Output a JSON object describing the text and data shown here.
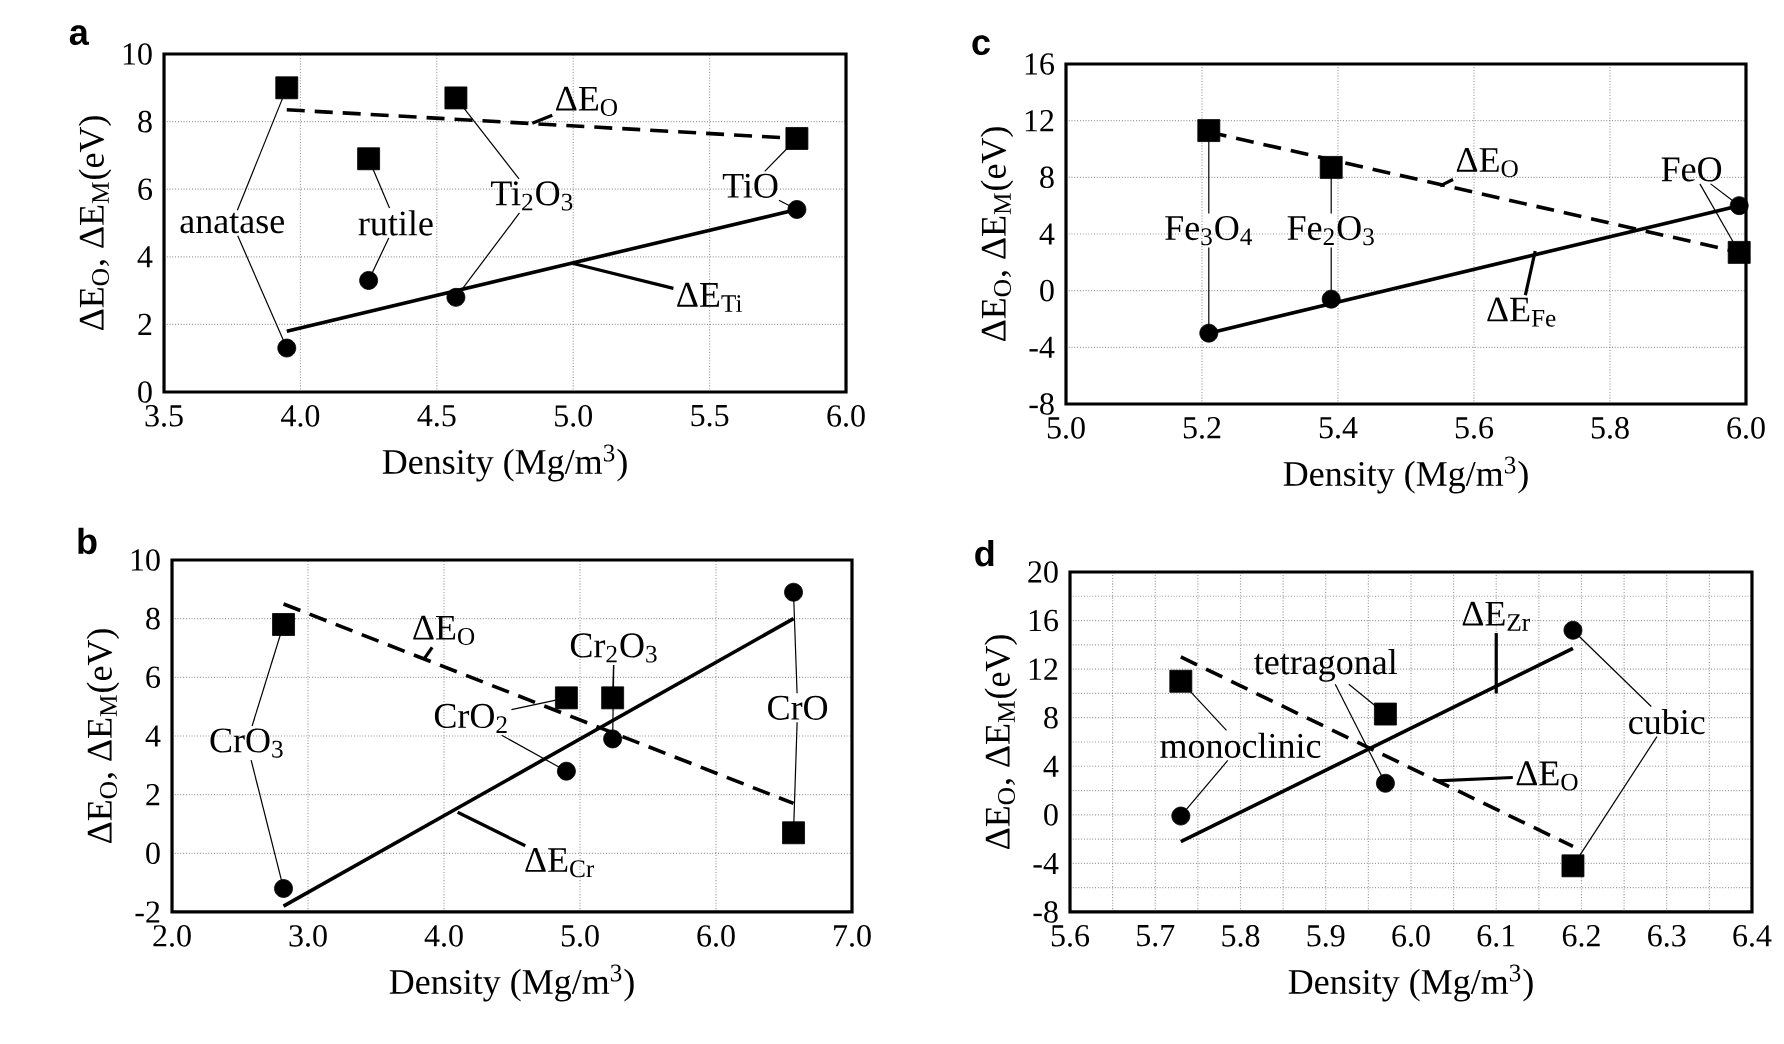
{
  "chart_data": [
    {
      "type": "scatter",
      "title": "a",
      "xlabel": "Density (Mg/m$^{3}$)",
      "ylabel": "ΔE$_{O}$, ΔE$_{M}$(eV)",
      "grid": true,
      "xlim": [
        3.5,
        6.0
      ],
      "ylim": [
        0,
        10
      ],
      "xticks": [
        3.5,
        {
          "value": 4.0,
          "label": "4.0"
        },
        4.5,
        {
          "value": 5.0,
          "label": "5.0"
        },
        5.5,
        {
          "value": 6.0,
          "label": "6.0"
        }
      ],
      "yticks": [
        0,
        2,
        4,
        6,
        8,
        10
      ],
      "series": [
        {
          "type": "scatter",
          "marker": "square",
          "color": "#000000",
          "x": [
            3.95,
            4.25,
            4.57,
            5.82
          ],
          "values": [
            9.0,
            6.9,
            8.7,
            7.5
          ]
        },
        {
          "type": "scatter",
          "marker": "circle",
          "color": "#000000",
          "x": [
            3.95,
            4.25,
            4.57,
            5.82
          ],
          "values": [
            1.3,
            3.3,
            2.8,
            5.4
          ]
        },
        {
          "type": "line",
          "line_style": "dashed",
          "marker": "none",
          "color": "#000000",
          "x": [
            3.95,
            5.82
          ],
          "values": [
            8.35,
            7.5
          ]
        },
        {
          "type": "line",
          "line_style": "solid",
          "marker": "none",
          "color": "#000000",
          "x": [
            3.95,
            5.82
          ],
          "values": [
            1.8,
            5.4
          ]
        }
      ],
      "annotations": [
        {
          "text": "anatase",
          "x": 3.95,
          "y": 1.3
        },
        {
          "text": "rutile",
          "x": 4.25,
          "y": 3.3
        },
        {
          "text": "Ti$_{2}$O$_{3}$",
          "x": 4.57,
          "y": 2.8
        },
        {
          "text": "TiO",
          "x": 5.82,
          "y": 5.4
        },
        {
          "text": "ΔE$_{O}$",
          "x": 4.85,
          "y": 7.95
        },
        {
          "text": "ΔE$_{Ti}$",
          "x": 5.0,
          "y": 3.8
        }
      ]
    },
    {
      "type": "scatter",
      "title": "c",
      "xlabel": "Density (Mg/m$^{3}$)",
      "ylabel": "ΔE$_{O}$, ΔE$_{M}$(eV)",
      "grid": true,
      "xlim": [
        5.0,
        6.0
      ],
      "ylim": [
        -8,
        16
      ],
      "xticks": [
        {
          "value": 5.0,
          "label": "5.0"
        },
        5.2,
        5.4,
        5.6,
        5.8,
        {
          "value": 6.0,
          "label": "6.0"
        }
      ],
      "yticks": [
        -8,
        -4,
        0,
        4,
        8,
        12,
        16
      ],
      "series": [
        {
          "type": "scatter",
          "marker": "square",
          "color": "#000000",
          "x": [
            5.21,
            5.39,
            5.99
          ],
          "values": [
            11.3,
            8.7,
            2.7
          ]
        },
        {
          "type": "scatter",
          "marker": "circle",
          "color": "#000000",
          "x": [
            5.21,
            5.39,
            5.99
          ],
          "values": [
            -3.0,
            -0.6,
            6.0
          ]
        },
        {
          "type": "line",
          "line_style": "dashed",
          "marker": "none",
          "color": "#000000",
          "x": [
            5.21,
            5.99
          ],
          "values": [
            11.2,
            2.7
          ]
        },
        {
          "type": "line",
          "line_style": "solid",
          "marker": "none",
          "color": "#000000",
          "x": [
            5.21,
            5.99
          ],
          "values": [
            -3.0,
            6.0
          ]
        }
      ],
      "annotations": [
        {
          "text": "Fe$_{3}$O$_{4}$",
          "x": 5.21,
          "y": -3.0
        },
        {
          "text": "Fe$_{2}$O$_{3}$",
          "x": 5.39,
          "y": -0.6
        },
        {
          "text": "FeO",
          "x": 5.99,
          "y": 6.0
        },
        {
          "text": "ΔE$_{O}$",
          "x": 5.55,
          "y": 7.4
        },
        {
          "text": "ΔE$_{Fe}$",
          "x": 5.69,
          "y": 2.8
        }
      ]
    },
    {
      "type": "scatter",
      "title": "b",
      "xlabel": "Density (Mg/m$^{3}$)",
      "ylabel": "ΔE$_{O}$, ΔE$_{M}$(eV)",
      "grid": true,
      "xlim": [
        2.0,
        7.0
      ],
      "ylim": [
        -2,
        10
      ],
      "xticks": [
        {
          "value": 2.0,
          "label": "2.0"
        },
        {
          "value": 3.0,
          "label": "3.0"
        },
        {
          "value": 4.0,
          "label": "4.0"
        },
        {
          "value": 5.0,
          "label": "5.0"
        },
        {
          "value": 6.0,
          "label": "6.0"
        },
        {
          "value": 7.0,
          "label": "7.0"
        }
      ],
      "yticks": [
        -2,
        0,
        2,
        4,
        6,
        8,
        10
      ],
      "series": [
        {
          "type": "scatter",
          "marker": "square",
          "color": "#000000",
          "x": [
            2.82,
            4.9,
            5.24,
            6.57
          ],
          "values": [
            7.8,
            5.3,
            5.3,
            0.7
          ]
        },
        {
          "type": "scatter",
          "marker": "circle",
          "color": "#000000",
          "x": [
            2.82,
            4.9,
            5.24,
            6.57
          ],
          "values": [
            -1.2,
            2.8,
            3.9,
            8.9
          ]
        },
        {
          "type": "line",
          "line_style": "dashed",
          "marker": "none",
          "color": "#000000",
          "x": [
            2.82,
            6.57
          ],
          "values": [
            8.5,
            1.7
          ]
        },
        {
          "type": "line",
          "line_style": "solid",
          "marker": "none",
          "color": "#000000",
          "x": [
            2.82,
            6.57
          ],
          "values": [
            -1.8,
            8.0
          ]
        }
      ],
      "annotations": [
        {
          "text": "CrO$_{3}$",
          "x": 2.82,
          "y": -1.2
        },
        {
          "text": "CrO$_{2}$",
          "x": 4.9,
          "y": 2.8
        },
        {
          "text": "Cr$_{2}$O$_{3}$",
          "x": 5.24,
          "y": 3.9
        },
        {
          "text": "CrO",
          "x": 6.57,
          "y": 8.9
        },
        {
          "text": "ΔE$_{O}$",
          "x": 3.85,
          "y": 6.6
        },
        {
          "text": "ΔE$_{Cr}$",
          "x": 4.1,
          "y": 1.4
        }
      ]
    },
    {
      "type": "scatter",
      "title": "d",
      "xlabel": "Density (Mg/m$^{3}$)",
      "ylabel": "ΔE$_{O}$, ΔE$_{M}$(eV)",
      "grid": true,
      "xlim": [
        5.6,
        6.4
      ],
      "ylim": [
        -8,
        20
      ],
      "xticks": [
        5.6,
        {
          "value": 5.65,
          "label": null
        },
        5.7,
        {
          "value": 5.75,
          "label": null
        },
        5.8,
        {
          "value": 5.85,
          "label": null
        },
        5.9,
        {
          "value": 5.95,
          "label": null
        },
        {
          "value": 6.0,
          "label": "6.0"
        },
        {
          "value": 6.05,
          "label": null
        },
        6.1,
        {
          "value": 6.15,
          "label": null
        },
        6.2,
        {
          "value": 6.25,
          "label": null
        },
        6.3,
        {
          "value": 6.35,
          "label": null
        },
        6.4
      ],
      "yticks": [
        -8,
        {
          "value": -6,
          "label": null
        },
        -4,
        {
          "value": -2,
          "label": null
        },
        0,
        {
          "value": 2,
          "label": null
        },
        4,
        {
          "value": 6,
          "label": null
        },
        8,
        {
          "value": 10,
          "label": null
        },
        12,
        {
          "value": 14,
          "label": null
        },
        16,
        {
          "value": 18,
          "label": null
        },
        20
      ],
      "series": [
        {
          "type": "scatter",
          "marker": "square",
          "color": "#000000",
          "x": [
            5.73,
            5.97,
            6.19
          ],
          "values": [
            11.0,
            8.3,
            -4.2
          ]
        },
        {
          "type": "scatter",
          "marker": "circle",
          "color": "#000000",
          "x": [
            5.73,
            5.97,
            6.19
          ],
          "values": [
            -0.1,
            2.6,
            15.2
          ]
        },
        {
          "type": "line",
          "line_style": "dashed",
          "marker": "none",
          "color": "#000000",
          "x": [
            5.73,
            6.19
          ],
          "values": [
            13.0,
            -2.6
          ]
        },
        {
          "type": "line",
          "line_style": "solid",
          "marker": "none",
          "color": "#000000",
          "x": [
            5.73,
            6.19
          ],
          "values": [
            -2.2,
            13.7
          ]
        }
      ],
      "annotations": [
        {
          "text": "monoclinic",
          "x": 5.73,
          "y": -0.1
        },
        {
          "text": "tetragonal",
          "x": 5.97,
          "y": 2.6
        },
        {
          "text": "cubic",
          "x": 6.19,
          "y": 15.2
        },
        {
          "text": "ΔE$_{O}$",
          "x": 6.03,
          "y": 2.8
        },
        {
          "text": "ΔE$_{Zr}$",
          "x": 6.1,
          "y": 10.0
        }
      ]
    }
  ]
}
